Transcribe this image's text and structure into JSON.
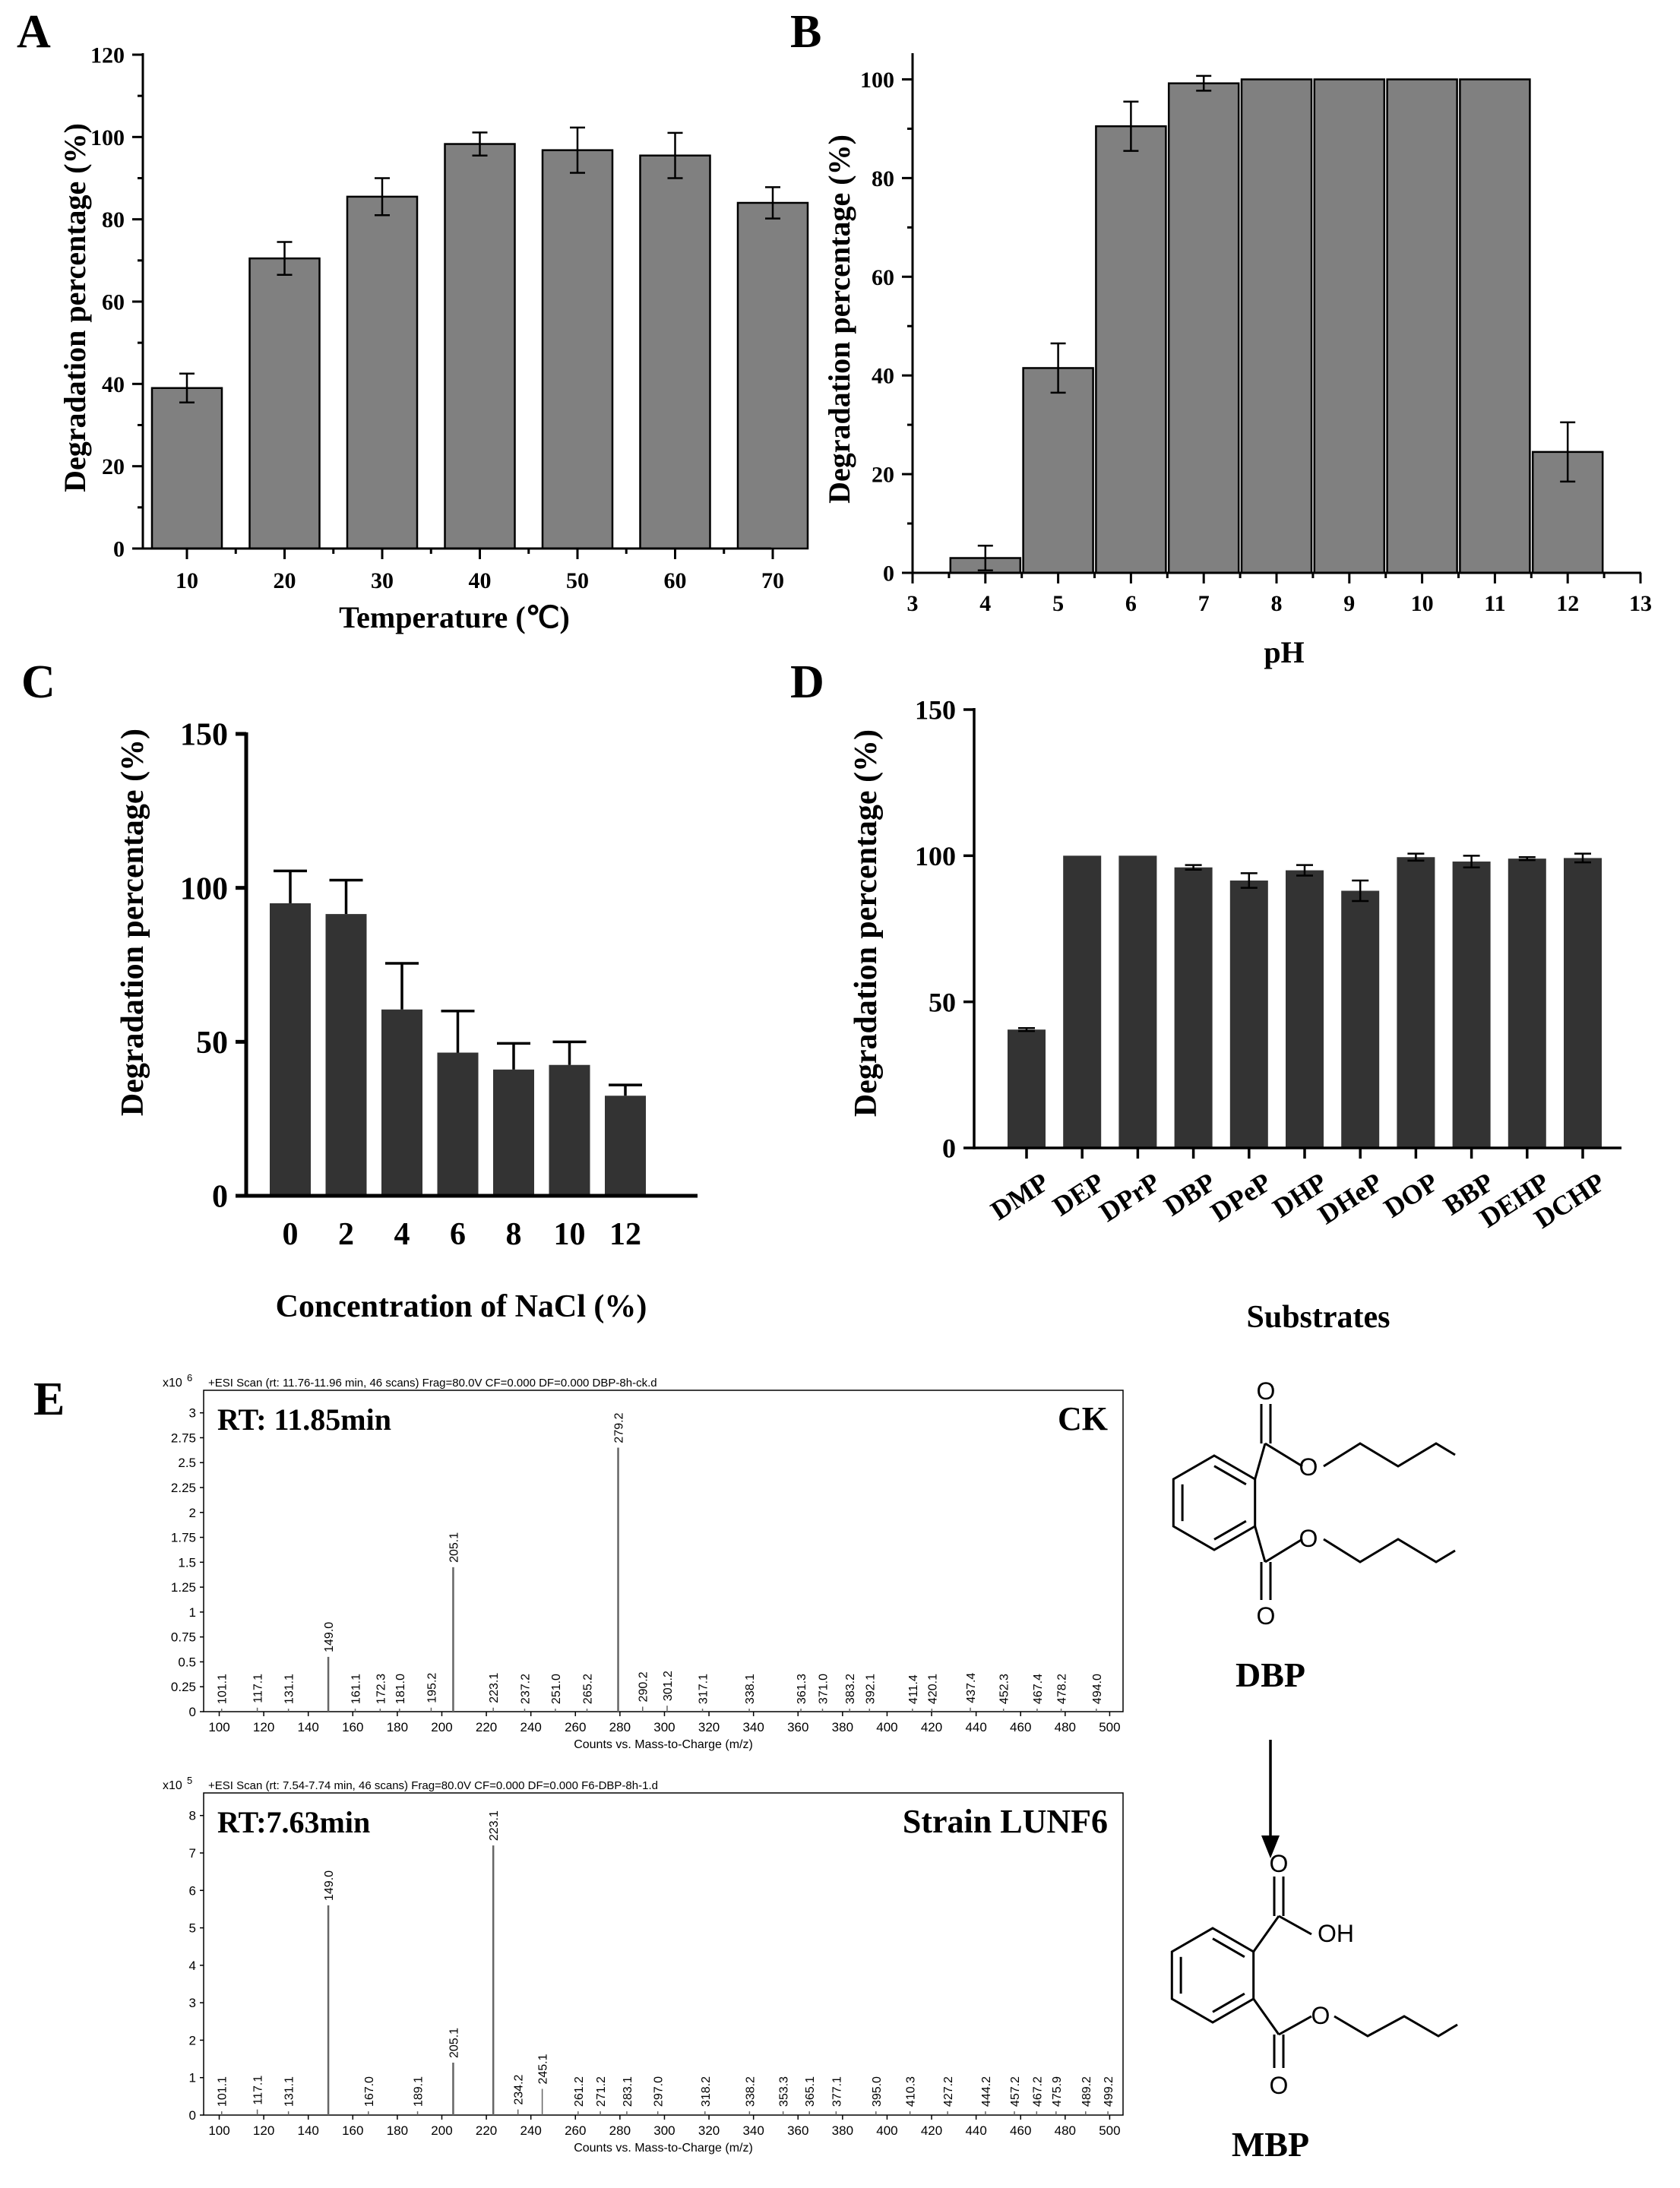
{
  "colors": {
    "bar_gray": "#808080",
    "bar_dark": "#333333",
    "axis": "#000000",
    "spectrum": "#666666"
  },
  "chart_data": [
    {
      "panel_label": "A",
      "type": "bar",
      "categories": [
        "10",
        "20",
        "30",
        "40",
        "50",
        "60",
        "70"
      ],
      "values": [
        39,
        70.5,
        85.5,
        98.3,
        96.8,
        95.5,
        84
      ],
      "errors": [
        3.5,
        4,
        4.5,
        2.8,
        5.5,
        5.5,
        3.8
      ],
      "yticks": [
        "0",
        "20",
        "40",
        "60",
        "80",
        "100",
        "120"
      ],
      "ylim": [
        0,
        120
      ],
      "xlabel": "Temperature (℃)",
      "ylabel": "Degradation percentage (%)"
    },
    {
      "panel_label": "B",
      "type": "bar",
      "categories": [
        "4",
        "5",
        "6",
        "7",
        "8",
        "9",
        "10",
        "11",
        "12"
      ],
      "values": [
        3,
        41.5,
        90.5,
        99.2,
        100,
        100,
        100,
        100,
        24.5
      ],
      "errors": [
        2.5,
        5,
        5,
        1.5,
        0,
        0,
        0,
        0,
        6
      ],
      "xticks": [
        "3",
        "4",
        "5",
        "6",
        "7",
        "8",
        "9",
        "10",
        "11",
        "12",
        "13"
      ],
      "xlim": [
        3,
        13
      ],
      "yticks": [
        "0",
        "20",
        "40",
        "60",
        "80",
        "100"
      ],
      "ylim": [
        0,
        105
      ],
      "xlabel": "pH",
      "ylabel": "Degradation percentage (%)"
    },
    {
      "panel_label": "C",
      "type": "bar",
      "categories": [
        "0",
        "2",
        "4",
        "6",
        "8",
        "10",
        "12"
      ],
      "values": [
        95,
        91.5,
        60.5,
        46.5,
        41,
        42.5,
        32.5
      ],
      "errors": [
        10.5,
        11,
        15,
        13.5,
        8.5,
        7.5,
        3.5
      ],
      "yticks": [
        "0",
        "50",
        "100",
        "150"
      ],
      "ylim": [
        0,
        150
      ],
      "xlabel": "Concentration of NaCl (%)",
      "ylabel": "Degradation percentage (%)"
    },
    {
      "panel_label": "D",
      "type": "bar",
      "categories": [
        "DMP",
        "DEP",
        "DPrP",
        "DBP",
        "DPeP",
        "DHP",
        "DHeP",
        "DOP",
        "BBP",
        "DEHP",
        "DCHP"
      ],
      "values": [
        40.5,
        100,
        100,
        96,
        91.5,
        95,
        88,
        99.5,
        98,
        99,
        99.2
      ],
      "errors": [
        0.5,
        0,
        0,
        0.8,
        2.5,
        1.8,
        3.5,
        1.2,
        2,
        0.5,
        1.5
      ],
      "yticks": [
        "0",
        "50",
        "100",
        "150"
      ],
      "ylim": [
        0,
        150
      ],
      "xlabel": "Substrates",
      "ylabel": "Degradation percentage (%)"
    },
    {
      "panel_label": "E",
      "type": "line",
      "spectra": [
        {
          "sample": "CK",
          "header": "+ESI Scan (rt: 11.76-11.96 min, 46 scans) Frag=80.0V CF=0.000 DF=0.000 DBP-8h-ck.d",
          "rt": "RT: 11.85min",
          "exponent_prefix": "x10",
          "exponent": "6",
          "yticks": [
            "0",
            "0.25",
            "0.5",
            "0.75",
            "1",
            "1.25",
            "1.5",
            "1.75",
            "2",
            "2.25",
            "2.5",
            "2.75",
            "3"
          ],
          "ylim": [
            0,
            3.15
          ],
          "xticks": [
            "100",
            "120",
            "140",
            "160",
            "180",
            "200",
            "220",
            "240",
            "260",
            "280",
            "300",
            "320",
            "340",
            "360",
            "380",
            "400",
            "420",
            "440",
            "460",
            "480",
            "500"
          ],
          "xlim": [
            93,
            506
          ],
          "xlabel": "Counts vs. Mass-to-Charge (m/z)",
          "peaks": [
            {
              "x": 101.1,
              "y": 0.03,
              "label": "101.1"
            },
            {
              "x": 117.1,
              "y": 0.04,
              "label": "117.1"
            },
            {
              "x": 131.1,
              "y": 0.03,
              "label": "131.1"
            },
            {
              "x": 149.0,
              "y": 0.55,
              "label": "149.0"
            },
            {
              "x": 161.1,
              "y": 0.03,
              "label": "161.1"
            },
            {
              "x": 172.3,
              "y": 0.03,
              "label": "172.3"
            },
            {
              "x": 181.0,
              "y": 0.03,
              "label": "181.0"
            },
            {
              "x": 195.2,
              "y": 0.04,
              "label": "195.2"
            },
            {
              "x": 205.1,
              "y": 1.45,
              "label": "205.1"
            },
            {
              "x": 223.1,
              "y": 0.04,
              "label": "223.1"
            },
            {
              "x": 237.2,
              "y": 0.03,
              "label": "237.2"
            },
            {
              "x": 251.0,
              "y": 0.03,
              "label": "251.0"
            },
            {
              "x": 265.2,
              "y": 0.03,
              "label": "265.2"
            },
            {
              "x": 279.2,
              "y": 2.65,
              "label": "279.2"
            },
            {
              "x": 290.2,
              "y": 0.05,
              "label": "290.2"
            },
            {
              "x": 301.2,
              "y": 0.06,
              "label": "301.2"
            },
            {
              "x": 317.1,
              "y": 0.03,
              "label": "317.1"
            },
            {
              "x": 338.1,
              "y": 0.03,
              "label": "338.1"
            },
            {
              "x": 361.3,
              "y": 0.03,
              "label": "361.3"
            },
            {
              "x": 371.0,
              "y": 0.03,
              "label": "371.0"
            },
            {
              "x": 383.2,
              "y": 0.03,
              "label": "383.2"
            },
            {
              "x": 392.1,
              "y": 0.03,
              "label": "392.1"
            },
            {
              "x": 411.4,
              "y": 0.03,
              "label": "411.4"
            },
            {
              "x": 420.1,
              "y": 0.03,
              "label": "420.1"
            },
            {
              "x": 437.4,
              "y": 0.04,
              "label": "437.4"
            },
            {
              "x": 452.3,
              "y": 0.03,
              "label": "452.3"
            },
            {
              "x": 467.4,
              "y": 0.03,
              "label": "467.4"
            },
            {
              "x": 478.2,
              "y": 0.03,
              "label": "478.2"
            },
            {
              "x": 494.0,
              "y": 0.03,
              "label": "494.0"
            }
          ]
        },
        {
          "sample": "Strain LUNF6",
          "header": "+ESI Scan (rt: 7.54-7.74 min, 46 scans) Frag=80.0V CF=0.000 DF=0.000 F6-DBP-8h-1.d",
          "rt": "RT:7.63min",
          "exponent_prefix": "x10",
          "exponent": "5",
          "yticks": [
            "0",
            "1",
            "2",
            "3",
            "4",
            "5",
            "6",
            "7",
            "8"
          ],
          "ylim": [
            0,
            8.4
          ],
          "xticks": [
            "100",
            "120",
            "140",
            "160",
            "180",
            "200",
            "220",
            "240",
            "260",
            "280",
            "300",
            "320",
            "340",
            "360",
            "380",
            "400",
            "420",
            "440",
            "460",
            "480",
            "500"
          ],
          "xlim": [
            93,
            506
          ],
          "xlabel": "Counts vs. Mass-to-Charge (m/z)",
          "peaks": [
            {
              "x": 101.1,
              "y": 0.1,
              "label": "101.1"
            },
            {
              "x": 117.1,
              "y": 0.15,
              "label": "117.1"
            },
            {
              "x": 131.1,
              "y": 0.1,
              "label": "131.1"
            },
            {
              "x": 149.0,
              "y": 5.6,
              "label": "149.0"
            },
            {
              "x": 167.0,
              "y": 0.1,
              "label": "167.0"
            },
            {
              "x": 189.1,
              "y": 0.1,
              "label": "189.1"
            },
            {
              "x": 205.1,
              "y": 1.4,
              "label": "205.1"
            },
            {
              "x": 223.1,
              "y": 7.2,
              "label": "223.1"
            },
            {
              "x": 234.2,
              "y": 0.15,
              "label": "234.2"
            },
            {
              "x": 245.1,
              "y": 0.7,
              "label": "245.1"
            },
            {
              "x": 261.2,
              "y": 0.1,
              "label": "261.2"
            },
            {
              "x": 271.2,
              "y": 0.1,
              "label": "271.2"
            },
            {
              "x": 283.1,
              "y": 0.1,
              "label": "283.1"
            },
            {
              "x": 297.0,
              "y": 0.1,
              "label": "297.0"
            },
            {
              "x": 318.2,
              "y": 0.1,
              "label": "318.2"
            },
            {
              "x": 338.2,
              "y": 0.1,
              "label": "338.2"
            },
            {
              "x": 353.3,
              "y": 0.1,
              "label": "353.3"
            },
            {
              "x": 365.1,
              "y": 0.1,
              "label": "365.1"
            },
            {
              "x": 377.1,
              "y": 0.1,
              "label": "377.1"
            },
            {
              "x": 395.0,
              "y": 0.1,
              "label": "395.0"
            },
            {
              "x": 410.3,
              "y": 0.1,
              "label": "410.3"
            },
            {
              "x": 427.2,
              "y": 0.1,
              "label": "427.2"
            },
            {
              "x": 444.2,
              "y": 0.1,
              "label": "444.2"
            },
            {
              "x": 457.2,
              "y": 0.1,
              "label": "457.2"
            },
            {
              "x": 467.2,
              "y": 0.1,
              "label": "467.2"
            },
            {
              "x": 475.9,
              "y": 0.1,
              "label": "475.9"
            },
            {
              "x": 489.2,
              "y": 0.1,
              "label": "489.2"
            },
            {
              "x": 499.2,
              "y": 0.1,
              "label": "499.2"
            }
          ]
        }
      ],
      "pathway": {
        "reactant": "DBP",
        "product": "MBP",
        "product_atom_labels": [
          "O",
          "OH",
          "O",
          "O"
        ],
        "reactant_atom_labels": [
          "O",
          "O",
          "O",
          "O"
        ]
      }
    }
  ]
}
